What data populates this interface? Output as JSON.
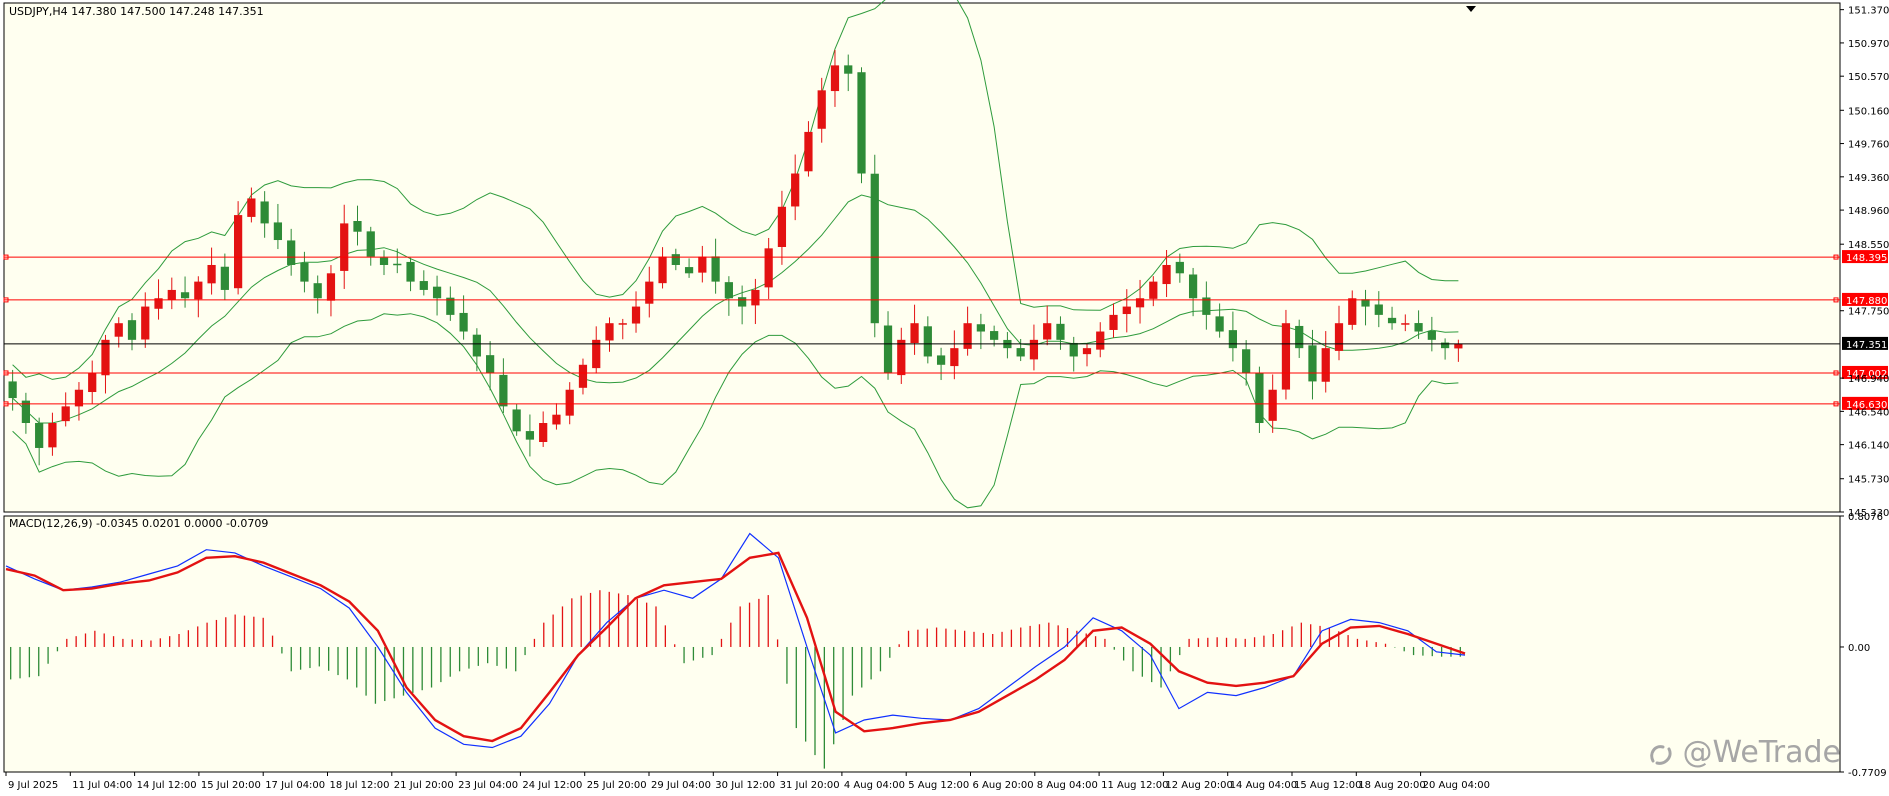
{
  "colors": {
    "background": "#fffff0",
    "frame": "#000000",
    "bull_candle": "#e31212",
    "bear_candle": "#2e8b37",
    "bollinger": "#2e9b3c",
    "level_line": "#ff0000",
    "current_price_line": "#000000",
    "macd_line": "#1030ff",
    "signal_line": "#e31212",
    "hist_positive": "#e31212",
    "hist_negative": "#2e8b37"
  },
  "watermark": {
    "text": "@WeTrade",
    "icon": "wetrade-logo-icon"
  },
  "chart_data": [
    {
      "type": "candlestick",
      "label": "USDJPY,H4  147.380 147.500 147.248 147.351",
      "ylim": [
        145.33,
        151.45
      ],
      "price_ticks": [
        "151.370",
        "150.970",
        "150.570",
        "150.160",
        "149.760",
        "149.360",
        "148.960",
        "148.550",
        "147.750",
        "146.940",
        "146.540",
        "146.140",
        "145.730",
        "145.330"
      ],
      "level_lines": [
        148.395,
        147.88,
        147.002,
        146.63
      ],
      "level_labels": [
        "148.395",
        "147.880",
        "147.002",
        "146.630"
      ],
      "current_price": 147.351,
      "current_price_label": "147.351",
      "x_labels": [
        "9 Jul 2025",
        "11 Jul 04:00",
        "14 Jul 12:00",
        "15 Jul 20:00",
        "17 Jul 04:00",
        "18 Jul 12:00",
        "21 Jul 20:00",
        "23 Jul 04:00",
        "24 Jul 12:00",
        "25 Jul 20:00",
        "29 Jul 04:00",
        "30 Jul 12:00",
        "31 Jul 20:00",
        "4 Aug 04:00",
        "5 Aug 12:00",
        "6 Aug 20:00",
        "8 Aug 04:00",
        "11 Aug 12:00",
        "12 Aug 20:00",
        "14 Aug 04:00",
        "15 Aug 12:00",
        "18 Aug 20:00",
        "20 Aug 04:00"
      ],
      "close_path": [
        146.7,
        146.4,
        146.1,
        146.4,
        146.6,
        146.8,
        147.0,
        147.4,
        147.6,
        147.4,
        147.8,
        147.9,
        148.0,
        147.9,
        148.1,
        148.3,
        148.0,
        148.9,
        149.1,
        148.8,
        148.6,
        148.3,
        148.1,
        147.9,
        148.2,
        148.8,
        148.7,
        148.4,
        148.3,
        148.3,
        148.1,
        148.0,
        147.9,
        147.7,
        147.5,
        147.2,
        147.0,
        146.6,
        146.3,
        146.2,
        146.4,
        146.5,
        146.8,
        147.1,
        147.4,
        147.6,
        147.6,
        147.8,
        148.1,
        148.4,
        148.3,
        148.2,
        148.4,
        148.1,
        147.9,
        147.8,
        148.0,
        148.5,
        149.0,
        149.4,
        149.9,
        150.4,
        150.7,
        150.6,
        149.4,
        147.6,
        147.0,
        147.4,
        147.6,
        147.2,
        147.1,
        147.3,
        147.6,
        147.5,
        147.4,
        147.3,
        147.2,
        147.4,
        147.6,
        147.4,
        147.2,
        147.3,
        147.5,
        147.7,
        147.8,
        147.9,
        148.1,
        148.3,
        148.2,
        147.9,
        147.7,
        147.5,
        147.3,
        147.0,
        146.4,
        146.8,
        147.6,
        147.3,
        146.9,
        147.3,
        147.6,
        147.9,
        147.8,
        147.7,
        147.6,
        147.6,
        147.5,
        147.4,
        147.3,
        147.351
      ],
      "ohlc_last": [
        147.38,
        147.5,
        147.248,
        147.351
      ]
    },
    {
      "type": "line",
      "label": "MACD(12,26,9) -0.0345 0.0201 0.0000 -0.0709",
      "ylim": [
        -0.7709,
        0.8076
      ],
      "ticks": [
        "0.8076",
        "0.00",
        "-0.7709"
      ],
      "zero_line": 0.0,
      "series": [
        {
          "name": "MACD",
          "values": [
            0.5,
            0.42,
            0.35,
            0.37,
            0.4,
            0.45,
            0.5,
            0.6,
            0.58,
            0.5,
            0.43,
            0.36,
            0.24,
            0.0,
            -0.28,
            -0.5,
            -0.6,
            -0.62,
            -0.55,
            -0.35,
            -0.05,
            0.15,
            0.3,
            0.35,
            0.3,
            0.42,
            0.7,
            0.55,
            0.0,
            -0.53,
            -0.45,
            -0.42,
            -0.44,
            -0.45,
            -0.38,
            -0.25,
            -0.12,
            0.0,
            0.18,
            0.1,
            -0.05,
            -0.38,
            -0.28,
            -0.3,
            -0.25,
            -0.18,
            0.1,
            0.17,
            0.15,
            0.1,
            -0.03,
            -0.05
          ]
        },
        {
          "name": "Signal",
          "values": [
            0.48,
            0.44,
            0.35,
            0.36,
            0.39,
            0.41,
            0.46,
            0.55,
            0.56,
            0.52,
            0.45,
            0.38,
            0.28,
            0.1,
            -0.25,
            -0.45,
            -0.55,
            -0.58,
            -0.5,
            -0.28,
            -0.05,
            0.12,
            0.3,
            0.38,
            0.4,
            0.42,
            0.55,
            0.58,
            0.18,
            -0.4,
            -0.52,
            -0.5,
            -0.47,
            -0.45,
            -0.4,
            -0.3,
            -0.2,
            -0.08,
            0.1,
            0.12,
            0.02,
            -0.15,
            -0.22,
            -0.24,
            -0.22,
            -0.18,
            0.02,
            0.12,
            0.13,
            0.08,
            0.02,
            -0.04
          ]
        },
        {
          "name": "Histogram",
          "values": [
            -0.2,
            -0.18,
            0.05,
            0.1,
            0.05,
            0.04,
            0.08,
            0.15,
            0.2,
            0.18,
            -0.15,
            -0.12,
            -0.2,
            -0.35,
            -0.3,
            -0.25,
            -0.15,
            -0.1,
            -0.15,
            0.15,
            0.3,
            0.35,
            0.32,
            0.25,
            -0.1,
            -0.05,
            0.25,
            0.32,
            -0.5,
            -0.75,
            -0.3,
            -0.15,
            0.1,
            0.12,
            0.1,
            0.08,
            0.12,
            0.15,
            0.1,
            0.05,
            -0.15,
            -0.25,
            0.05,
            0.06,
            0.05,
            0.08,
            0.15,
            0.12,
            0.05,
            0.02,
            -0.05,
            -0.06
          ]
        }
      ]
    }
  ]
}
